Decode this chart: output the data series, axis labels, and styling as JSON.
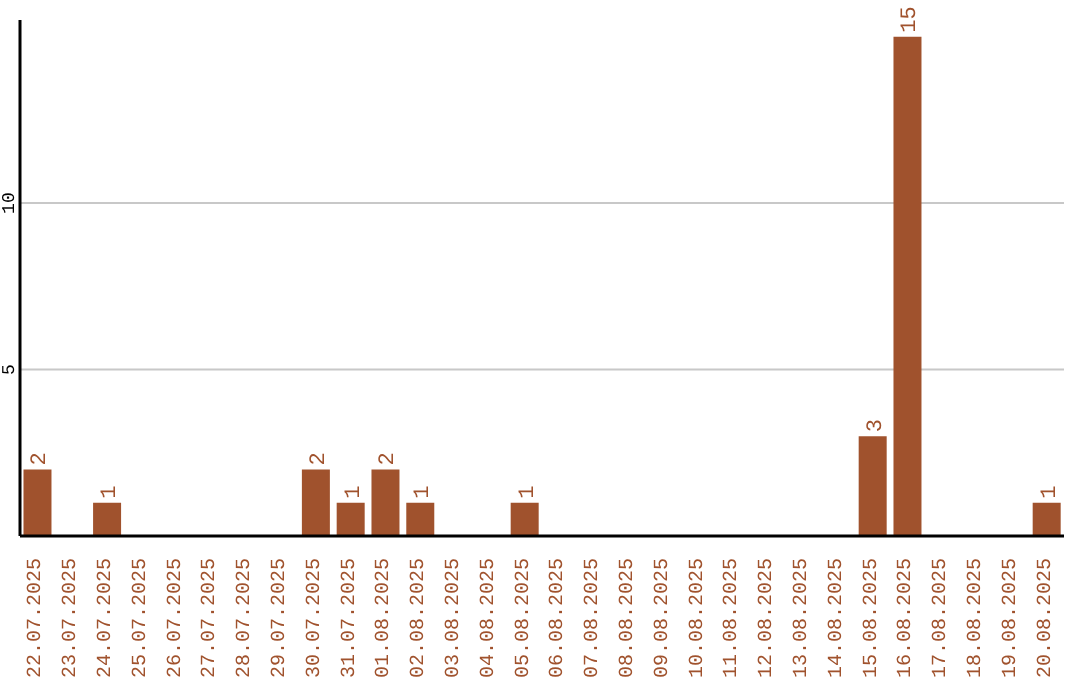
{
  "chart_data": {
    "type": "bar",
    "categories": [
      "22.07.2025",
      "23.07.2025",
      "24.07.2025",
      "25.07.2025",
      "26.07.2025",
      "27.07.2025",
      "28.07.2025",
      "29.07.2025",
      "30.07.2025",
      "31.07.2025",
      "01.08.2025",
      "02.08.2025",
      "03.08.2025",
      "04.08.2025",
      "05.08.2025",
      "06.08.2025",
      "07.08.2025",
      "08.08.2025",
      "09.08.2025",
      "10.08.2025",
      "11.08.2025",
      "12.08.2025",
      "13.08.2025",
      "14.08.2025",
      "15.08.2025",
      "16.08.2025",
      "17.08.2025",
      "18.08.2025",
      "19.08.2025",
      "20.08.2025"
    ],
    "values": [
      2,
      0,
      1,
      0,
      0,
      0,
      0,
      0,
      2,
      1,
      2,
      1,
      0,
      0,
      1,
      0,
      0,
      0,
      0,
      0,
      0,
      0,
      0,
      0,
      3,
      15,
      0,
      0,
      0,
      1
    ],
    "value_labels": [
      "2",
      null,
      "1",
      null,
      null,
      null,
      null,
      null,
      "2",
      "1",
      "2",
      "1",
      null,
      null,
      "1",
      null,
      null,
      null,
      null,
      null,
      null,
      null,
      null,
      null,
      "3",
      "15",
      null,
      null,
      null,
      "1"
    ],
    "color": "#a0522d",
    "ylim": [
      0,
      15.5
    ],
    "yticks": [
      5,
      10
    ],
    "grid": "y"
  }
}
